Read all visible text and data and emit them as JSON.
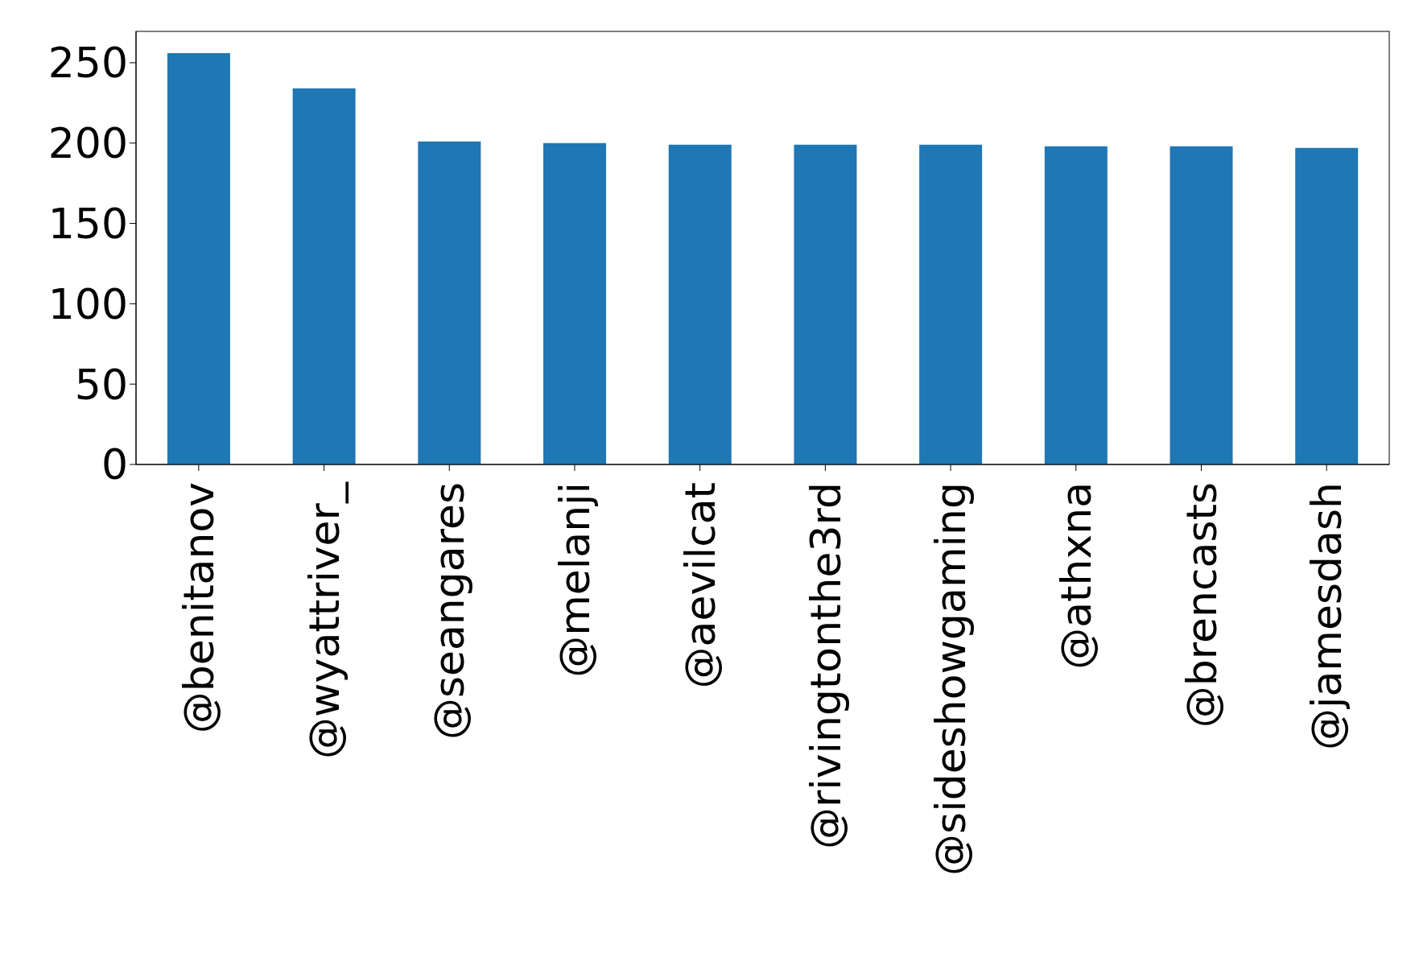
{
  "chart_data": {
    "type": "bar",
    "categories": [
      "@benitanov",
      "@wyattriver_",
      "@seangares",
      "@melanji",
      "@aevilcat",
      "@rivingtonthe3rd",
      "@sideshowgaming",
      "@athxna",
      "@brencasts",
      "@jamesdash"
    ],
    "values": [
      256,
      234,
      201,
      200,
      199,
      199,
      199,
      198,
      198,
      197
    ],
    "color": "#1f77b4",
    "ylim": [
      0,
      269.5
    ],
    "yticks": [
      0,
      50,
      100,
      150,
      200,
      250
    ],
    "grid": false
  }
}
